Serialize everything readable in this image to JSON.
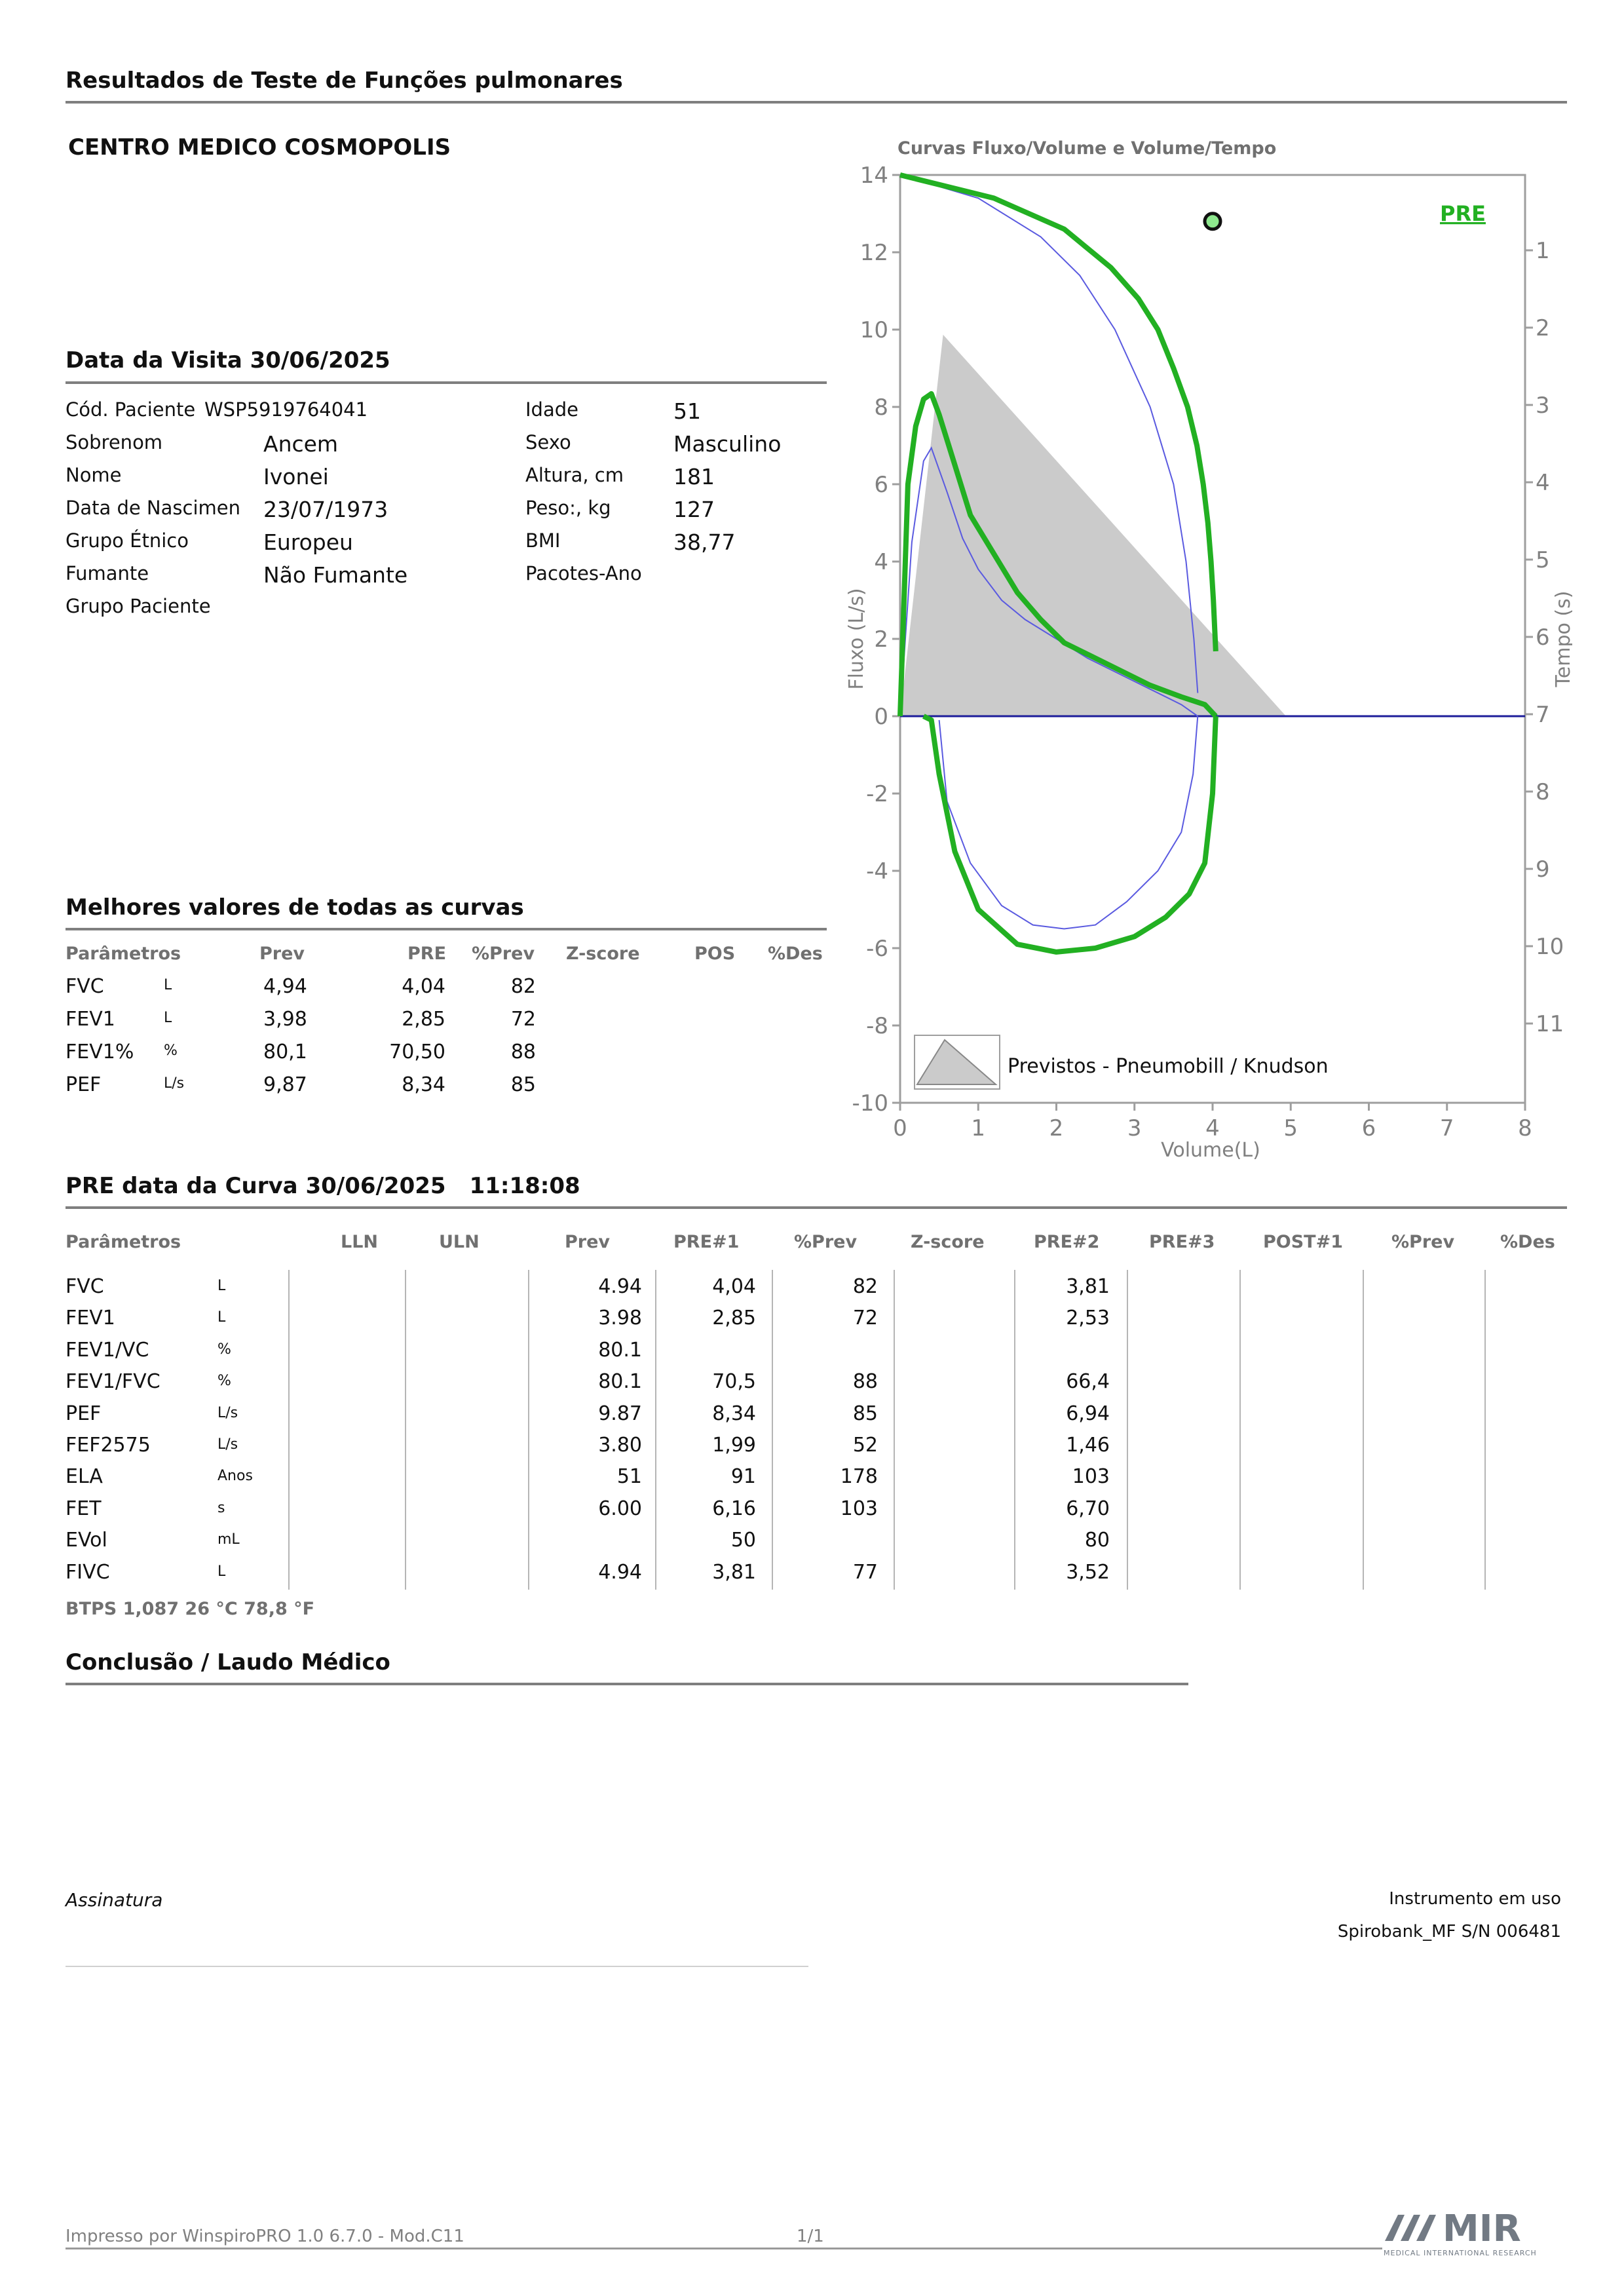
{
  "header": {
    "title": "Resultados de Teste de Funções pulmonares",
    "center": "CENTRO MEDICO COSMOPOLIS"
  },
  "visit": {
    "title": "Data da Visita 30/06/2025"
  },
  "patient": {
    "left": [
      {
        "label": "Cód. Paciente",
        "value": "WSP5919764041"
      },
      {
        "label": "Sobrenom",
        "value": "Ancem"
      },
      {
        "label": "Nome",
        "value": "Ivonei"
      },
      {
        "label": "Data de Nascimen",
        "value": "23/07/1973"
      },
      {
        "label": "Grupo Étnico",
        "value": "Europeu"
      },
      {
        "label": "Fumante",
        "value": "Não Fumante"
      },
      {
        "label": "Grupo Paciente",
        "value": ""
      }
    ],
    "right": [
      {
        "label": "Idade",
        "value": "51"
      },
      {
        "label": "Sexo",
        "value": "Masculino"
      },
      {
        "label": "Altura, cm",
        "value": "181"
      },
      {
        "label": "Peso:, kg",
        "value": "127"
      },
      {
        "label": "BMI",
        "value": "38,77"
      },
      {
        "label": "Pacotes-Ano",
        "value": ""
      }
    ]
  },
  "best": {
    "title": "Melhores valores de todas as curvas",
    "headers": [
      "Parâmetros",
      "Prev",
      "PRE",
      "%Prev",
      "Z-score",
      "POS",
      "%Des"
    ],
    "rows": [
      {
        "param": "FVC",
        "unit": "L",
        "prev": "4,94",
        "pre": "4,04",
        "pprev": "82"
      },
      {
        "param": "FEV1",
        "unit": "L",
        "prev": "3,98",
        "pre": "2,85",
        "pprev": "72"
      },
      {
        "param": "FEV1%",
        "unit": "%",
        "prev": "80,1",
        "pre": "70,50",
        "pprev": "88"
      },
      {
        "param": "PEF",
        "unit": "L/s",
        "prev": "9,87",
        "pre": "8,34",
        "pprev": "85"
      }
    ]
  },
  "curve": {
    "title": "PRE data da Curva 30/06/2025",
    "time": "11:18:08",
    "headers": [
      "Parâmetros",
      "LLN",
      "ULN",
      "Prev",
      "PRE#1",
      "%Prev",
      "Z-score",
      "PRE#2",
      "PRE#3",
      "POST#1",
      "%Prev",
      "%Des"
    ],
    "rows": [
      {
        "param": "FVC",
        "unit": "L",
        "prev": "4.94",
        "pre1": "4,04",
        "pprev": "82",
        "pre2": "3,81"
      },
      {
        "param": "FEV1",
        "unit": "L",
        "prev": "3.98",
        "pre1": "2,85",
        "pprev": "72",
        "pre2": "2,53"
      },
      {
        "param": "FEV1/VC",
        "unit": "%",
        "prev": "80.1",
        "pre1": "",
        "pprev": "",
        "pre2": ""
      },
      {
        "param": "FEV1/FVC",
        "unit": "%",
        "prev": "80.1",
        "pre1": "70,5",
        "pprev": "88",
        "pre2": "66,4"
      },
      {
        "param": "PEF",
        "unit": "L/s",
        "prev": "9.87",
        "pre1": "8,34",
        "pprev": "85",
        "pre2": "6,94"
      },
      {
        "param": "FEF2575",
        "unit": "L/s",
        "prev": "3.80",
        "pre1": "1,99",
        "pprev": "52",
        "pre2": "1,46"
      },
      {
        "param": "ELA",
        "unit": "Anos",
        "prev": "51",
        "pre1": "91",
        "pprev": "178",
        "pre2": "103"
      },
      {
        "param": "FET",
        "unit": "s",
        "prev": "6.00",
        "pre1": "6,16",
        "pprev": "103",
        "pre2": "6,70"
      },
      {
        "param": "EVol",
        "unit": "mL",
        "prev": "",
        "pre1": "50",
        "pprev": "",
        "pre2": "80"
      },
      {
        "param": "FIVC",
        "unit": "L",
        "prev": "4.94",
        "pre1": "3,81",
        "pprev": "77",
        "pre2": "3,52"
      }
    ],
    "btps": "BTPS  1,087  26 °C  78,8 °F"
  },
  "conclusion": {
    "title": "Conclusão / Laudo Médico"
  },
  "footer": {
    "signature": "Assinatura",
    "instrument_label": "Instrumento em uso",
    "instrument": "Spirobank_MF S/N 006481",
    "printed": "Impresso por WinspiroPRO 1.0 6.7.0 - Mod.C11",
    "page": "1/1",
    "logo": "MIR",
    "logo_sub": "MEDICAL INTERNATIONAL RESEARCH"
  },
  "chart_data": {
    "type": "line",
    "title": "Curvas Fluxo/Volume e Volume/Tempo",
    "xlabel": "Volume(L)",
    "ylabel": "Fluxo (L/s)",
    "y2label": "Tempo (s)",
    "xlim": [
      0,
      8
    ],
    "ylim": [
      -10,
      14
    ],
    "y2lim": [
      0,
      11
    ],
    "x_ticks": [
      "0",
      "1",
      "2",
      "3",
      "4",
      "5",
      "6",
      "7",
      "8"
    ],
    "y_ticks": [
      "14",
      "12",
      "10",
      "8",
      "6",
      "4",
      "2",
      "0",
      "-2",
      "-4",
      "-6",
      "-8",
      "-10"
    ],
    "y2_ticks": [
      "1",
      "2",
      "3",
      "4",
      "5",
      "6",
      "7",
      "8",
      "9",
      "10",
      "11"
    ],
    "series_label": "PRE",
    "legend_label": "Previstos - Pneumobill / Knudson",
    "colors": {
      "pre1": "#22b022",
      "pre2": "#5a5ae0",
      "predicted": "#c9c9c9",
      "marker": "#22b022"
    },
    "predicted": {
      "x": [
        0,
        0.55,
        4.94
      ],
      "y": [
        0,
        9.87,
        0
      ]
    },
    "pre1_flow_volume": {
      "x": [
        0,
        0.1,
        0.2,
        0.3,
        0.4,
        0.5,
        0.7,
        0.9,
        1.2,
        1.5,
        1.8,
        2.1,
        2.4,
        2.8,
        3.2,
        3.6,
        3.9,
        4.04
      ],
      "y": [
        0,
        6,
        7.5,
        8.2,
        8.34,
        7.8,
        6.5,
        5.2,
        4.2,
        3.2,
        2.5,
        1.9,
        1.6,
        1.2,
        0.8,
        0.5,
        0.3,
        0
      ]
    },
    "pre1_inspiratory": {
      "x": [
        4.04,
        4.0,
        3.9,
        3.7,
        3.4,
        3.0,
        2.5,
        2.0,
        1.5,
        1.0,
        0.7,
        0.5,
        0.4,
        0.3
      ],
      "y": [
        0,
        -2.0,
        -3.8,
        -4.6,
        -5.2,
        -5.7,
        -6.0,
        -6.1,
        -5.9,
        -5.0,
        -3.5,
        -1.5,
        -0.1,
        0
      ]
    },
    "pre2_flow_volume": {
      "x": [
        0,
        0.15,
        0.3,
        0.4,
        0.6,
        0.8,
        1.0,
        1.3,
        1.6,
        2.0,
        2.4,
        2.8,
        3.2,
        3.6,
        3.81
      ],
      "y": [
        0,
        4.5,
        6.6,
        6.94,
        5.8,
        4.6,
        3.8,
        3.0,
        2.5,
        2.0,
        1.5,
        1.1,
        0.7,
        0.3,
        0
      ]
    },
    "pre2_inspiratory": {
      "x": [
        3.81,
        3.75,
        3.6,
        3.3,
        2.9,
        2.5,
        2.1,
        1.7,
        1.3,
        0.9,
        0.6,
        0.5
      ],
      "y": [
        0,
        -1.5,
        -3.0,
        -4.0,
        -4.8,
        -5.4,
        -5.5,
        -5.4,
        -4.9,
        -3.8,
        -2.2,
        -0.1
      ]
    },
    "pre1_volume_time": {
      "t": [
        0,
        0.05,
        0.3,
        0.7,
        1.2,
        1.6,
        2.0,
        2.5,
        3.0,
        3.5,
        4.0,
        4.5,
        5.0,
        5.5,
        6.16
      ],
      "v": [
        0,
        0.2,
        1.2,
        2.1,
        2.7,
        3.05,
        3.3,
        3.5,
        3.68,
        3.8,
        3.88,
        3.94,
        3.98,
        4.01,
        4.04
      ]
    },
    "pre2_volume_time": {
      "t": [
        0,
        0.3,
        0.8,
        1.3,
        2.0,
        3.0,
        4.0,
        5.0,
        6.0,
        6.7
      ],
      "v": [
        0,
        1.0,
        1.8,
        2.3,
        2.75,
        3.2,
        3.5,
        3.66,
        3.76,
        3.81
      ]
    },
    "marker_point": {
      "volume": 4.0,
      "time": 0.6
    }
  }
}
